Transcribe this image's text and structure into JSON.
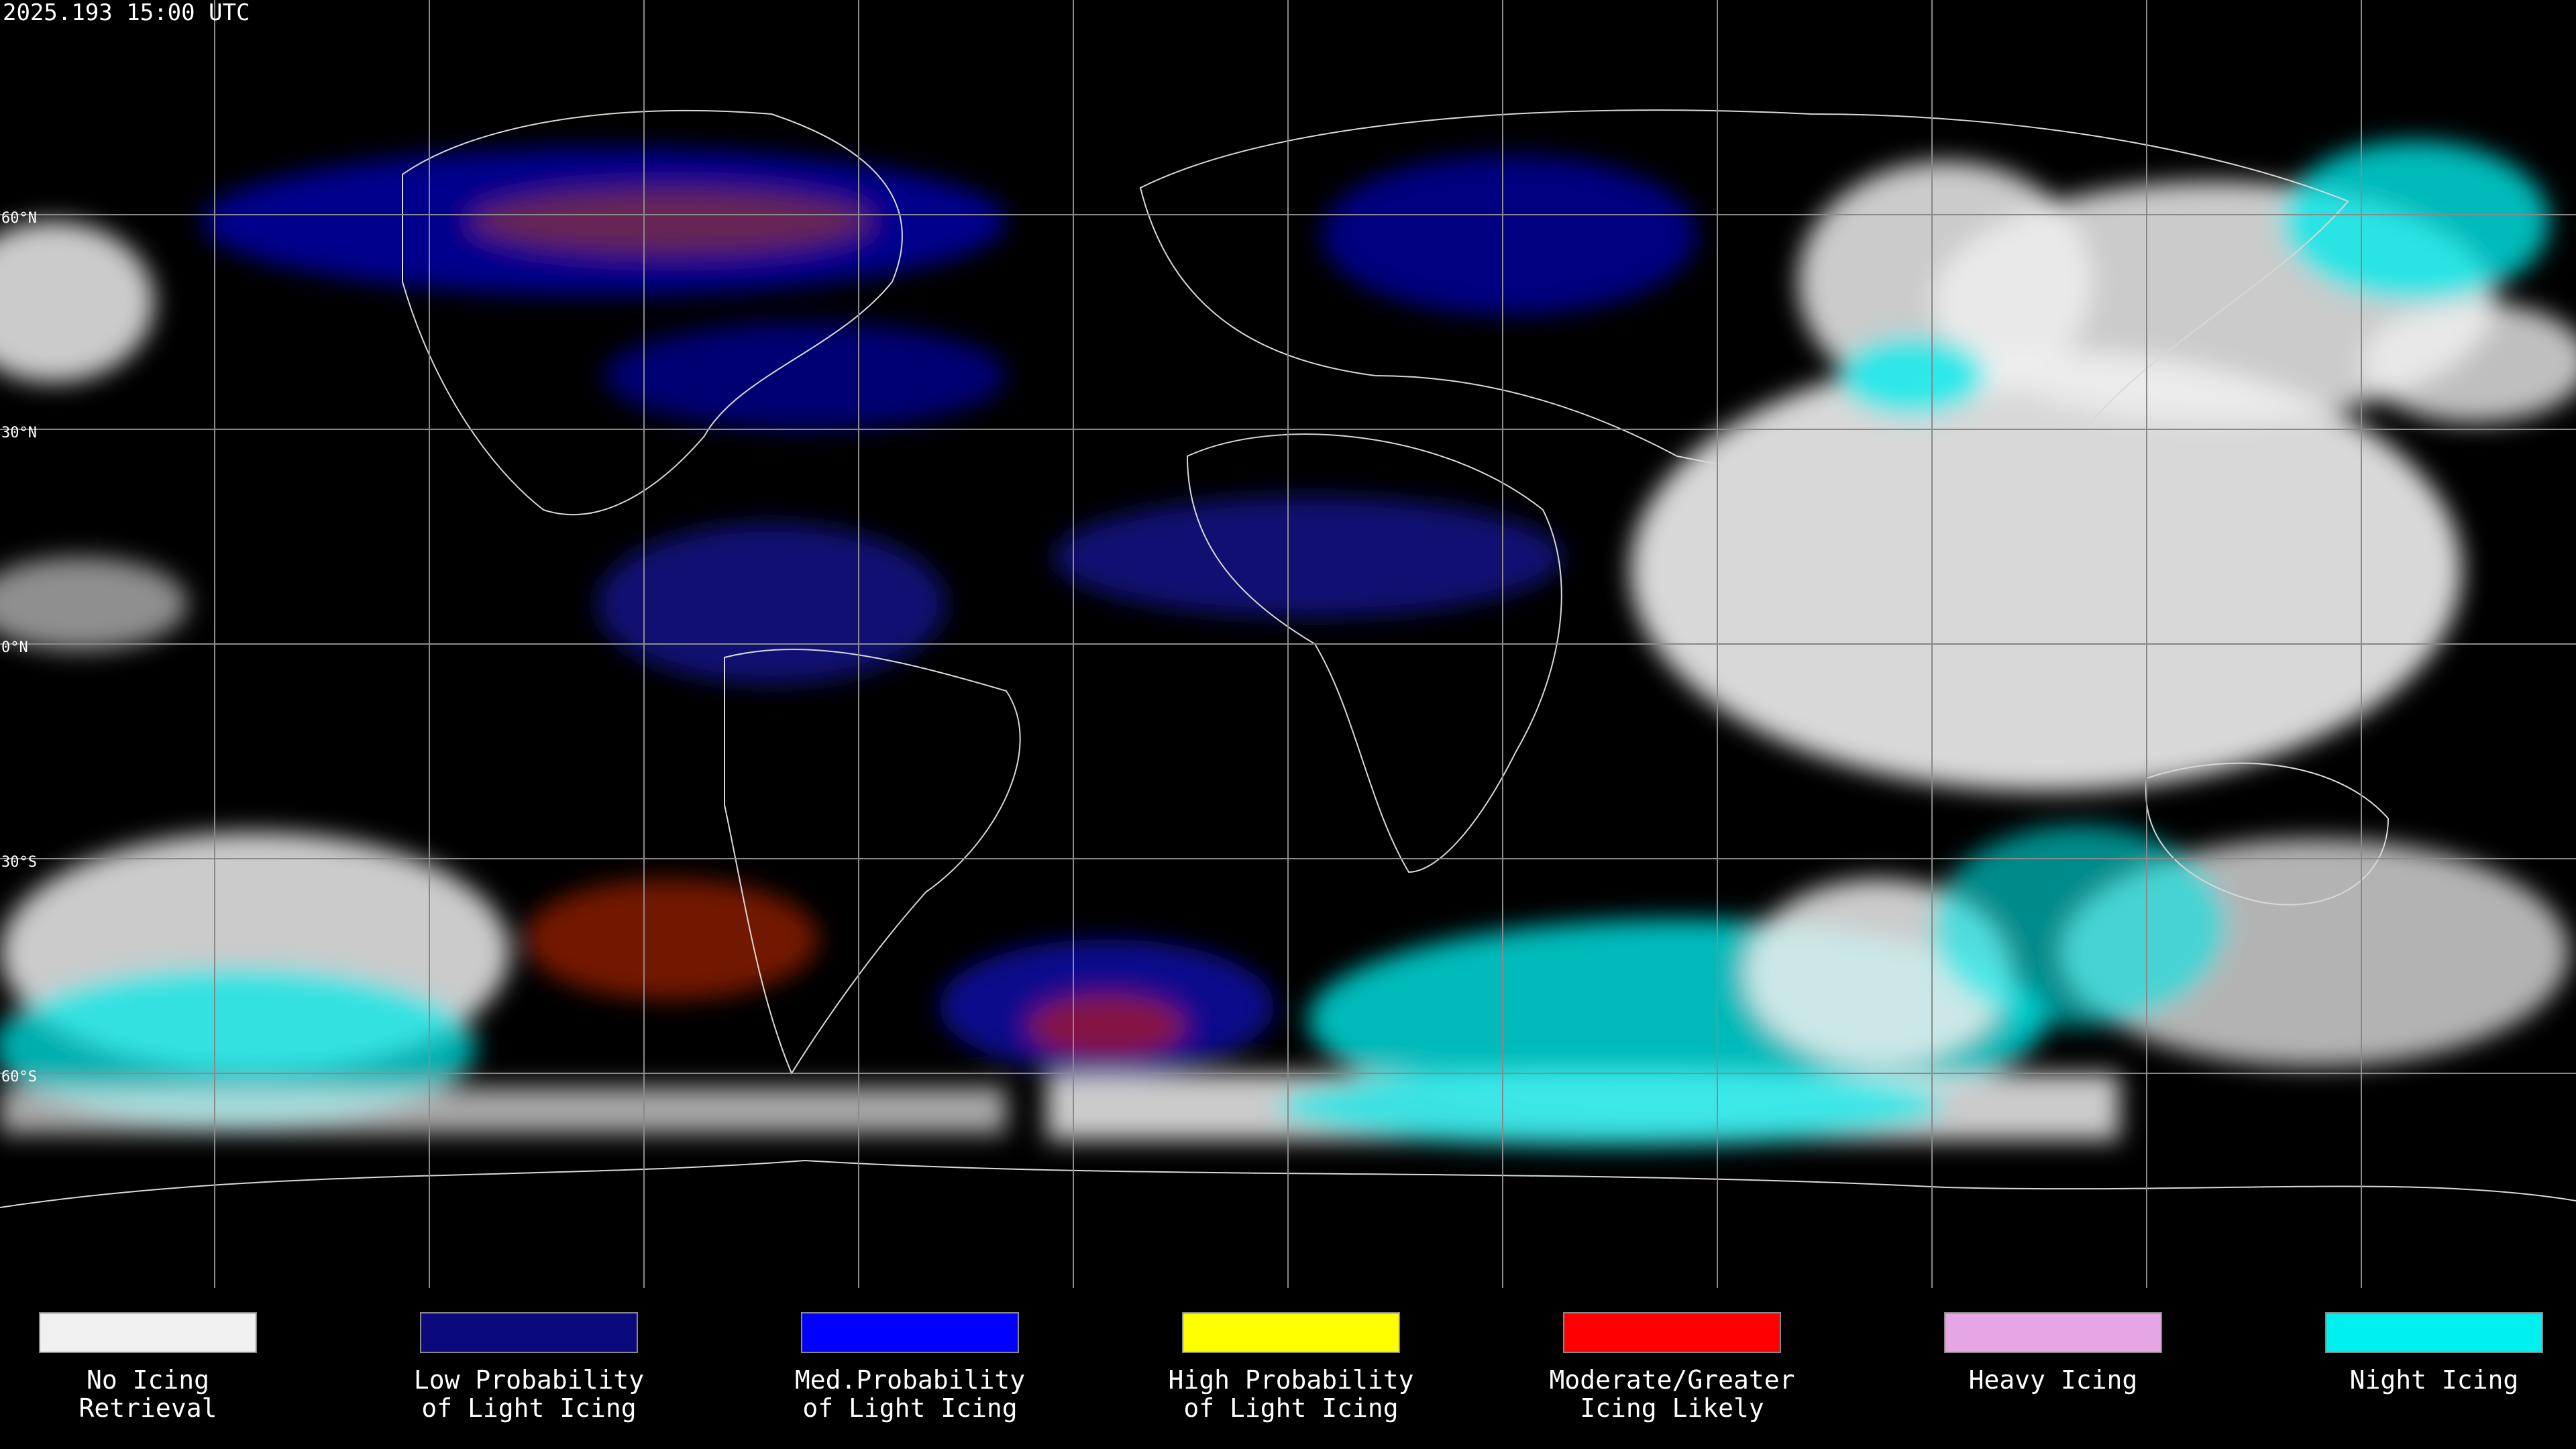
{
  "header": {
    "title": "2025.193 15:00 UTC"
  },
  "map": {
    "latitude_labels": [
      "60°N",
      "30°N",
      "0°N",
      "30°S",
      "60°S"
    ]
  },
  "legend": {
    "items": [
      {
        "lines": [
          "No Icing",
          "Retrieval"
        ],
        "color": "#f0f0f0"
      },
      {
        "lines": [
          "Low Probability",
          "of Light Icing"
        ],
        "color": "#0a0a7c"
      },
      {
        "lines": [
          "Med.Probability",
          "of Light Icing"
        ],
        "color": "#0000ff"
      },
      {
        "lines": [
          "High Probability",
          "of Light Icing"
        ],
        "color": "#ffff00"
      },
      {
        "lines": [
          "Moderate/Greater",
          "Icing Likely"
        ],
        "color": "#ff0000"
      },
      {
        "lines": [
          "Heavy Icing"
        ],
        "color": "#e6a6e6"
      },
      {
        "lines": [
          "Night Icing"
        ],
        "color": "#00f0f0"
      }
    ]
  }
}
